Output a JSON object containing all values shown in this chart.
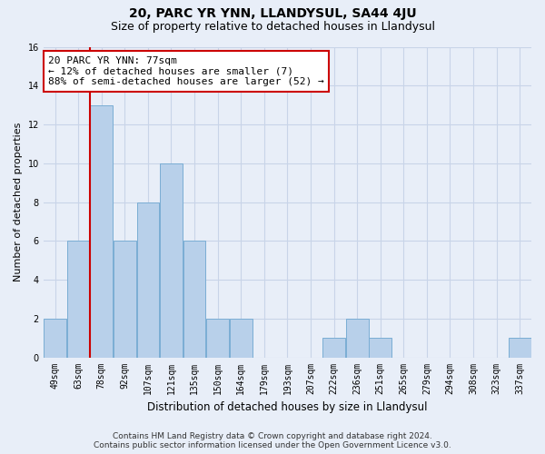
{
  "title": "20, PARC YR YNN, LLANDYSUL, SA44 4JU",
  "subtitle": "Size of property relative to detached houses in Llandysul",
  "xlabel": "Distribution of detached houses by size in Llandysul",
  "ylabel": "Number of detached properties",
  "categories": [
    "49sqm",
    "63sqm",
    "78sqm",
    "92sqm",
    "107sqm",
    "121sqm",
    "135sqm",
    "150sqm",
    "164sqm",
    "179sqm",
    "193sqm",
    "207sqm",
    "222sqm",
    "236sqm",
    "251sqm",
    "265sqm",
    "279sqm",
    "294sqm",
    "308sqm",
    "323sqm",
    "337sqm"
  ],
  "values": [
    2,
    6,
    13,
    6,
    8,
    10,
    6,
    2,
    2,
    0,
    0,
    0,
    1,
    2,
    1,
    0,
    0,
    0,
    0,
    0,
    1
  ],
  "bar_color": "#b8d0ea",
  "bar_edge_color": "#7aadd4",
  "property_line_index": 1.5,
  "property_line_color": "#cc0000",
  "annotation_text": "20 PARC YR YNN: 77sqm\n← 12% of detached houses are smaller (7)\n88% of semi-detached houses are larger (52) →",
  "annotation_box_facecolor": "#ffffff",
  "annotation_box_edgecolor": "#cc0000",
  "ylim": [
    0,
    16
  ],
  "yticks": [
    0,
    2,
    4,
    6,
    8,
    10,
    12,
    14,
    16
  ],
  "grid_color": "#c8d4e8",
  "background_color": "#e8eef8",
  "footer_line1": "Contains HM Land Registry data © Crown copyright and database right 2024.",
  "footer_line2": "Contains public sector information licensed under the Open Government Licence v3.0.",
  "title_fontsize": 10,
  "subtitle_fontsize": 9,
  "xlabel_fontsize": 8.5,
  "ylabel_fontsize": 8,
  "tick_fontsize": 7,
  "annotation_fontsize": 8,
  "footer_fontsize": 6.5
}
